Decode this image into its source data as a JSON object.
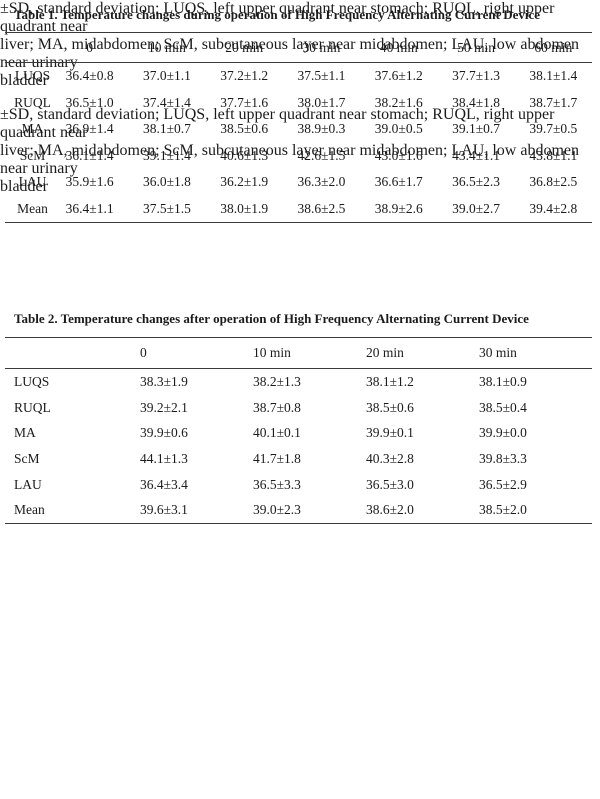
{
  "page": {
    "background": "#ffffff",
    "text_color": "#1b1b1b",
    "rule_color": "#3a3a3a"
  },
  "tables": [
    {
      "title": "Table 1. Temperature changes during operation of High Frequency Alternating Current Device",
      "columns": [
        "",
        "0",
        "10 min",
        "20 min",
        "30 min",
        "40 min",
        "50 min",
        "60 min"
      ],
      "rows": [
        {
          "label": "LUQS",
          "values": [
            "36.4±0.8",
            "37.0±1.1",
            "37.2±1.2",
            "37.5±1.1",
            "37.6±1.2",
            "37.7±1.3",
            "38.1±1.4"
          ]
        },
        {
          "label": "RUQL",
          "values": [
            "36.5±1.0",
            "37.4±1.4",
            "37.7±1.6",
            "38.0±1.7",
            "38.2±1.6",
            "38.4±1.8",
            "38.7±1.7"
          ]
        },
        {
          "label": "MA",
          "values": [
            "36.9±1.4",
            "38.1±0.7",
            "38.5±0.6",
            "38.9±0.3",
            "39.0±0.5",
            "39.1±0.7",
            "39.7±0.5"
          ]
        },
        {
          "label": "ScM",
          "values": [
            "36.1±1.4",
            "39.1±1.4",
            "40.6±1.3",
            "42.6±1.5",
            "43.0±1.6",
            "43.4±1.1",
            "43.8±1.1"
          ]
        },
        {
          "label": "LAU",
          "values": [
            "35.9±1.6",
            "36.0±1.8",
            "36.2±1.9",
            "36.3±2.0",
            "36.6±1.7",
            "36.5±2.3",
            "36.8±2.5"
          ]
        },
        {
          "label": "Mean",
          "values": [
            "36.4±1.1",
            "37.5±1.5",
            "38.0±1.9",
            "38.6±2.5",
            "38.9±2.6",
            "39.0±2.7",
            "39.4±2.8"
          ]
        }
      ],
      "footnote_lines": [
        "±SD, standard deviation; LUQS, left upper quadrant near stomach; RUQL, right upper quadrant near",
        "liver; MA, midabdomen; ScM, subcutaneous layer near midabdomen; LAU, low abdomen near urinary",
        "bladder"
      ]
    },
    {
      "title": "Table 2. Temperature changes after operation of High Frequency Alternating Current Device",
      "columns": [
        "",
        "0",
        "10 min",
        "20 min",
        "30 min"
      ],
      "rows": [
        {
          "label": "LUQS",
          "values": [
            "38.3±1.9",
            "38.2±1.3",
            "38.1±1.2",
            "38.1±0.9"
          ]
        },
        {
          "label": "RUQL",
          "values": [
            "39.2±2.1",
            "38.7±0.8",
            "38.5±0.6",
            "38.5±0.4"
          ]
        },
        {
          "label": "MA",
          "values": [
            "39.9±0.6",
            "40.1±0.1",
            "39.9±0.1",
            "39.9±0.0"
          ]
        },
        {
          "label": "ScM",
          "values": [
            "44.1±1.3",
            "41.7±1.8",
            "40.3±2.8",
            "39.8±3.3"
          ]
        },
        {
          "label": "LAU",
          "values": [
            "36.4±3.4",
            "36.5±3.3",
            "36.5±3.0",
            "36.5±2.9"
          ]
        },
        {
          "label": "Mean",
          "values": [
            "39.6±3.1",
            "39.0±2.3",
            "38.6±2.0",
            "38.5±2.0"
          ]
        }
      ],
      "footnote_lines": [
        "±SD, standard deviation; LUQS, left upper quadrant near stomach; RUQL, right upper quadrant near",
        "liver; MA, midabdomen; ScM, subcutaneous layer near midabdomen; LAU, low abdomen near urinary",
        "bladder"
      ]
    }
  ]
}
